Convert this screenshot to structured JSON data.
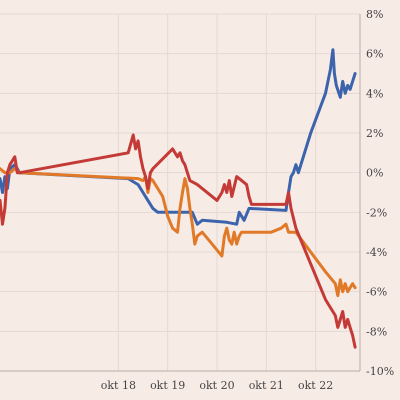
{
  "chart_data": {
    "type": "line",
    "title": "",
    "xlabel": "",
    "ylabel": "",
    "x_ticks": [
      {
        "label": "okt 18",
        "x": 2.4
      },
      {
        "label": "okt 19",
        "x": 3.4
      },
      {
        "label": "okt 20",
        "x": 4.4
      },
      {
        "label": "okt 21",
        "x": 5.4
      },
      {
        "label": "okt 22",
        "x": 6.4
      }
    ],
    "xlim": [
      0,
      7.3
    ],
    "y_ticks": [
      "8%",
      "6%",
      "4%",
      "2%",
      "0%",
      "-2%",
      "-4%",
      "-6%",
      "-8%",
      "-10%"
    ],
    "y_tick_values": [
      8,
      6,
      4,
      2,
      0,
      -2,
      -4,
      -6,
      -8,
      -10
    ],
    "ylim": [
      -10,
      8
    ],
    "grid": true,
    "legend": "none",
    "colors": {
      "background": "#f7ebe6",
      "grid": "#e6d9d3"
    },
    "series": [
      {
        "color": "#3b64ad",
        "points": [
          [
            0.0,
            -0.3
          ],
          [
            0.05,
            -1.0
          ],
          [
            0.1,
            -0.2
          ],
          [
            0.15,
            -0.8
          ],
          [
            0.2,
            0.2
          ],
          [
            0.3,
            0.4
          ],
          [
            0.4,
            0.0
          ],
          [
            2.6,
            -0.3
          ],
          [
            2.8,
            -0.6
          ],
          [
            2.9,
            -1.0
          ],
          [
            3.0,
            -1.4
          ],
          [
            3.1,
            -1.8
          ],
          [
            3.2,
            -2.0
          ],
          [
            3.7,
            -2.0
          ],
          [
            3.9,
            -2.0
          ],
          [
            4.0,
            -2.6
          ],
          [
            4.1,
            -2.4
          ],
          [
            4.6,
            -2.5
          ],
          [
            4.8,
            -2.6
          ],
          [
            4.85,
            -2.0
          ],
          [
            4.95,
            -2.4
          ],
          [
            5.05,
            -1.8
          ],
          [
            5.8,
            -1.9
          ],
          [
            5.85,
            -1.0
          ],
          [
            5.9,
            -0.2
          ],
          [
            5.95,
            0.0
          ],
          [
            6.0,
            0.4
          ],
          [
            6.05,
            0.0
          ],
          [
            6.3,
            2.0
          ],
          [
            6.6,
            4.0
          ],
          [
            6.7,
            5.2
          ],
          [
            6.75,
            6.2
          ],
          [
            6.78,
            5.0
          ],
          [
            6.82,
            4.4
          ],
          [
            6.9,
            3.8
          ],
          [
            6.95,
            4.6
          ],
          [
            7.0,
            4.0
          ],
          [
            7.05,
            4.4
          ],
          [
            7.1,
            4.2
          ],
          [
            7.15,
            4.6
          ],
          [
            7.2,
            5.0
          ]
        ]
      },
      {
        "color": "#e07a28",
        "points": [
          [
            0.0,
            0.2
          ],
          [
            0.1,
            0.0
          ],
          [
            0.2,
            0.0
          ],
          [
            0.3,
            0.2
          ],
          [
            0.4,
            0.0
          ],
          [
            2.8,
            -0.3
          ],
          [
            2.9,
            -0.4
          ],
          [
            2.95,
            -0.2
          ],
          [
            3.0,
            -1.0
          ],
          [
            3.05,
            -0.3
          ],
          [
            3.1,
            -0.4
          ],
          [
            3.3,
            -1.2
          ],
          [
            3.4,
            -2.2
          ],
          [
            3.5,
            -2.8
          ],
          [
            3.6,
            -3.0
          ],
          [
            3.65,
            -1.8
          ],
          [
            3.7,
            -1.0
          ],
          [
            3.75,
            -0.3
          ],
          [
            3.8,
            -0.8
          ],
          [
            3.85,
            -1.8
          ],
          [
            3.9,
            -2.6
          ],
          [
            3.95,
            -3.6
          ],
          [
            4.0,
            -3.2
          ],
          [
            4.1,
            -3.0
          ],
          [
            4.3,
            -3.6
          ],
          [
            4.5,
            -4.2
          ],
          [
            4.55,
            -3.2
          ],
          [
            4.6,
            -2.8
          ],
          [
            4.65,
            -3.4
          ],
          [
            4.7,
            -3.6
          ],
          [
            4.75,
            -3.0
          ],
          [
            4.8,
            -3.6
          ],
          [
            4.85,
            -3.2
          ],
          [
            4.9,
            -3.0
          ],
          [
            5.5,
            -3.0
          ],
          [
            5.7,
            -2.8
          ],
          [
            5.8,
            -2.6
          ],
          [
            5.85,
            -3.0
          ],
          [
            6.0,
            -3.0
          ],
          [
            6.3,
            -4.0
          ],
          [
            6.6,
            -5.0
          ],
          [
            6.8,
            -5.6
          ],
          [
            6.85,
            -6.2
          ],
          [
            6.9,
            -5.4
          ],
          [
            6.95,
            -6.0
          ],
          [
            7.0,
            -5.6
          ],
          [
            7.05,
            -6.0
          ],
          [
            7.1,
            -5.8
          ],
          [
            7.15,
            -5.6
          ],
          [
            7.2,
            -5.8
          ]
        ]
      },
      {
        "color": "#c43a36",
        "points": [
          [
            0.0,
            -1.4
          ],
          [
            0.05,
            -2.6
          ],
          [
            0.1,
            -1.8
          ],
          [
            0.15,
            0.0
          ],
          [
            0.2,
            0.4
          ],
          [
            0.3,
            0.8
          ],
          [
            0.35,
            0.0
          ],
          [
            0.4,
            0.0
          ],
          [
            2.6,
            1.0
          ],
          [
            2.7,
            1.9
          ],
          [
            2.75,
            1.2
          ],
          [
            2.8,
            1.6
          ],
          [
            2.85,
            0.8
          ],
          [
            2.9,
            0.2
          ],
          [
            2.95,
            -0.2
          ],
          [
            3.0,
            -0.8
          ],
          [
            3.05,
            0.0
          ],
          [
            3.1,
            0.2
          ],
          [
            3.5,
            1.2
          ],
          [
            3.6,
            0.8
          ],
          [
            3.65,
            1.0
          ],
          [
            3.7,
            0.6
          ],
          [
            3.75,
            0.4
          ],
          [
            3.8,
            0.0
          ],
          [
            3.85,
            -0.4
          ],
          [
            4.0,
            -0.6
          ],
          [
            4.4,
            -1.4
          ],
          [
            4.5,
            -1.0
          ],
          [
            4.55,
            -0.6
          ],
          [
            4.6,
            -1.0
          ],
          [
            4.65,
            -0.4
          ],
          [
            4.7,
            -1.2
          ],
          [
            4.8,
            -0.2
          ],
          [
            5.0,
            -0.6
          ],
          [
            5.05,
            -1.2
          ],
          [
            5.1,
            -1.6
          ],
          [
            5.8,
            -1.6
          ],
          [
            5.85,
            -1.0
          ],
          [
            5.9,
            -1.8
          ],
          [
            6.0,
            -2.8
          ],
          [
            6.3,
            -4.6
          ],
          [
            6.6,
            -6.4
          ],
          [
            6.8,
            -7.2
          ],
          [
            6.85,
            -7.8
          ],
          [
            6.9,
            -7.4
          ],
          [
            6.95,
            -7.0
          ],
          [
            7.0,
            -7.8
          ],
          [
            7.05,
            -7.4
          ],
          [
            7.1,
            -7.8
          ],
          [
            7.15,
            -8.2
          ],
          [
            7.2,
            -8.8
          ]
        ]
      }
    ]
  }
}
